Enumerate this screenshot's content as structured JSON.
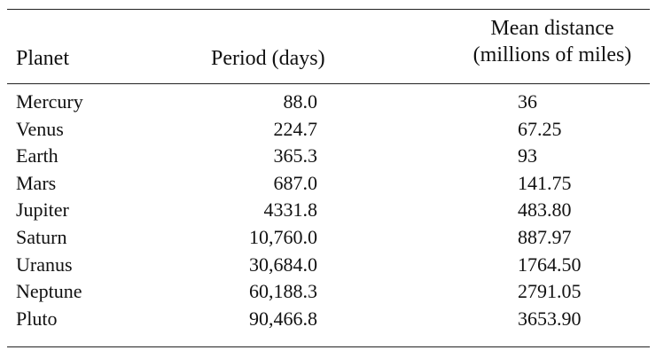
{
  "table": {
    "headers": {
      "planet": "Planet",
      "period": "Period (days)",
      "distance_line1": "Mean distance",
      "distance_line2": "(millions of miles)"
    },
    "rows": [
      {
        "planet": "Mercury",
        "period": "88.0",
        "distance": "36"
      },
      {
        "planet": "Venus",
        "period": "224.7",
        "distance": "67.25"
      },
      {
        "planet": "Earth",
        "period": "365.3",
        "distance": "93"
      },
      {
        "planet": "Mars",
        "period": "687.0",
        "distance": "141.75"
      },
      {
        "planet": "Jupiter",
        "period": "4331.8",
        "distance": "483.80"
      },
      {
        "planet": "Saturn",
        "period": "10,760.0",
        "distance": "887.97"
      },
      {
        "planet": "Uranus",
        "period": "30,684.0",
        "distance": "1764.50"
      },
      {
        "planet": "Neptune",
        "period": "60,188.3",
        "distance": "2791.05"
      },
      {
        "planet": "Pluto",
        "period": "90,466.8",
        "distance": "3653.90"
      }
    ]
  }
}
